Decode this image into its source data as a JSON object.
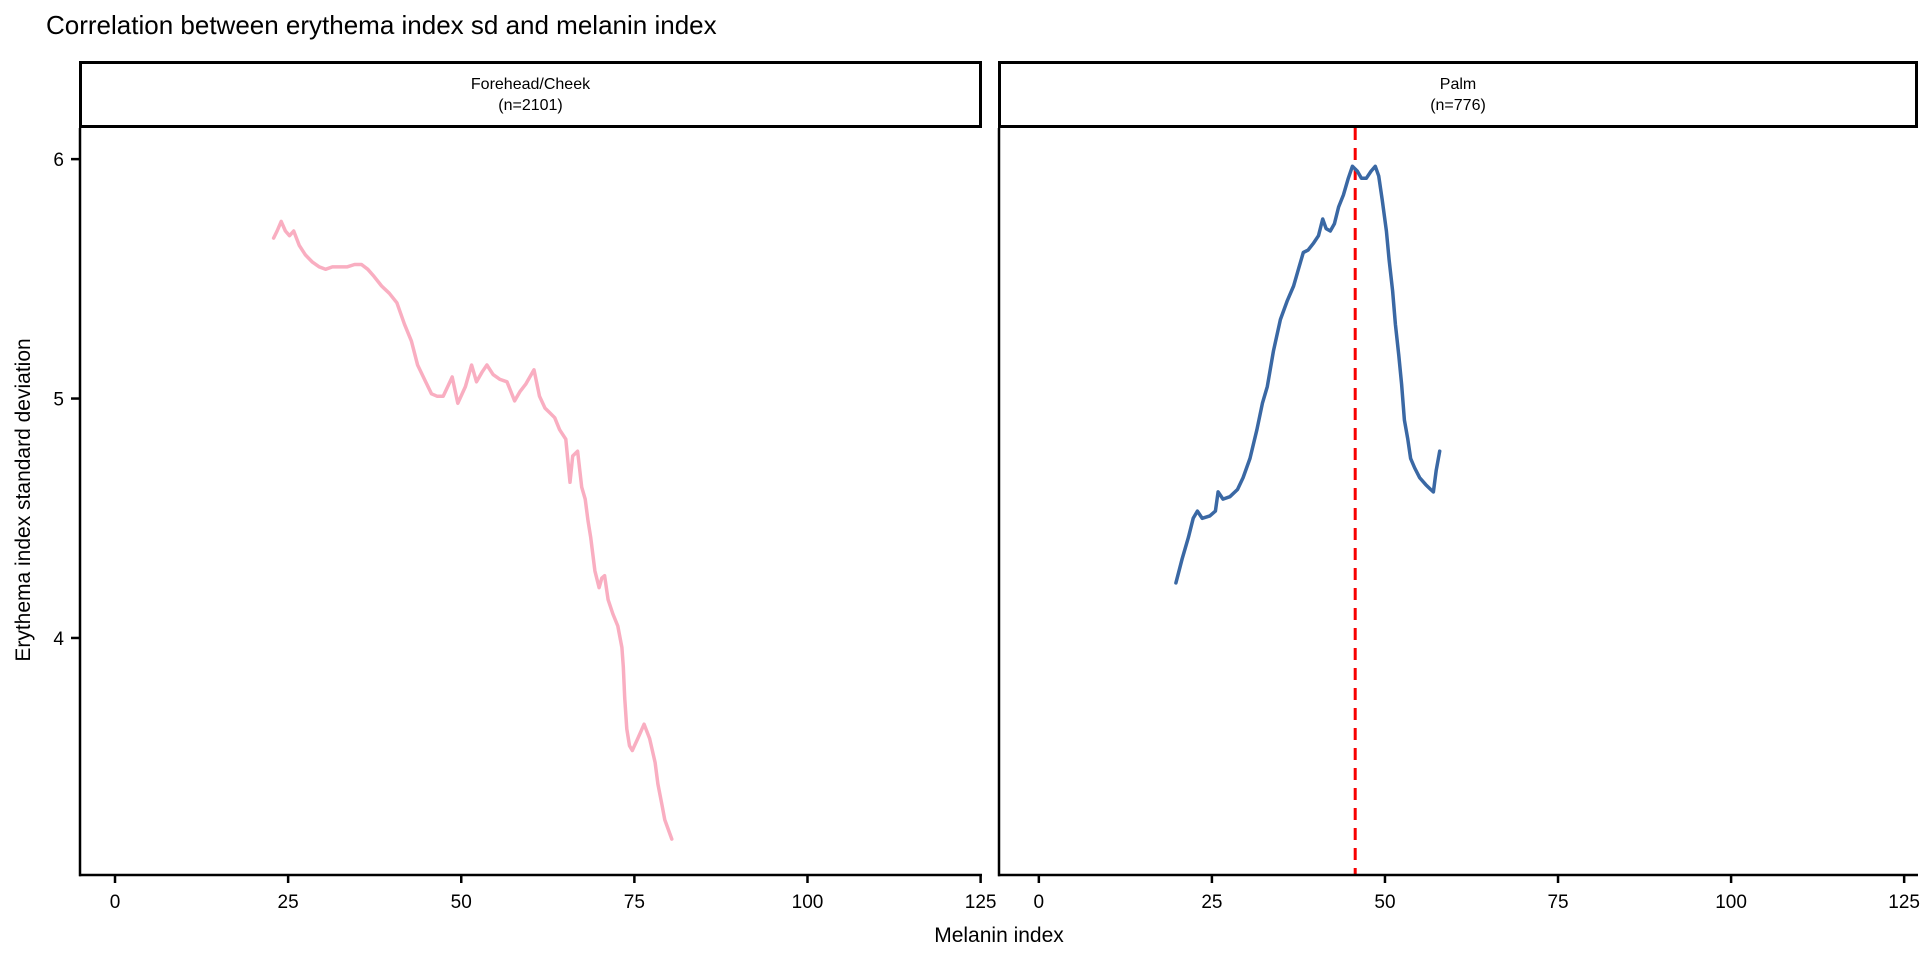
{
  "chart_data": {
    "type": "line",
    "title": "Correlation between erythema index sd and melanin index",
    "xlabel": "Melanin index",
    "ylabel": "Erythema index standard deviation",
    "x_ticks": [
      0,
      25,
      50,
      75,
      100,
      125
    ],
    "y_ticks": [
      4,
      5,
      6
    ],
    "ylim": [
      3.01,
      6.13
    ],
    "grid": "off",
    "legend": "none",
    "panels": [
      {
        "strip_line1": "Forehead/Cheek",
        "strip_line2": "(n=2101)",
        "series_name": "forehead-cheek",
        "color": "#F9AEC1",
        "xlim": [
          -5.2,
          125.2
        ],
        "points": [
          [
            22.9,
            5.67
          ],
          [
            23.4,
            5.7
          ],
          [
            24.0,
            5.74
          ],
          [
            24.6,
            5.7
          ],
          [
            25.2,
            5.68
          ],
          [
            25.8,
            5.7
          ],
          [
            26.6,
            5.64
          ],
          [
            27.5,
            5.6
          ],
          [
            28.5,
            5.57
          ],
          [
            29.5,
            5.55
          ],
          [
            30.4,
            5.54
          ],
          [
            31.4,
            5.55
          ],
          [
            32.4,
            5.55
          ],
          [
            33.5,
            5.55
          ],
          [
            34.6,
            5.56
          ],
          [
            35.6,
            5.56
          ],
          [
            36.5,
            5.54
          ],
          [
            37.4,
            5.51
          ],
          [
            38.5,
            5.47
          ],
          [
            39.6,
            5.44
          ],
          [
            40.7,
            5.4
          ],
          [
            41.8,
            5.31
          ],
          [
            42.8,
            5.24
          ],
          [
            43.7,
            5.14
          ],
          [
            44.7,
            5.08
          ],
          [
            45.7,
            5.02
          ],
          [
            46.5,
            5.01
          ],
          [
            47.4,
            5.01
          ],
          [
            48.7,
            5.09
          ],
          [
            49.5,
            4.98
          ],
          [
            50.6,
            5.05
          ],
          [
            51.5,
            5.14
          ],
          [
            52.2,
            5.07
          ],
          [
            53.0,
            5.11
          ],
          [
            53.7,
            5.14
          ],
          [
            54.6,
            5.1
          ],
          [
            55.6,
            5.08
          ],
          [
            56.6,
            5.07
          ],
          [
            57.7,
            4.99
          ],
          [
            58.5,
            5.03
          ],
          [
            59.3,
            5.06
          ],
          [
            60.5,
            5.12
          ],
          [
            61.3,
            5.01
          ],
          [
            62.1,
            4.96
          ],
          [
            62.8,
            4.94
          ],
          [
            63.5,
            4.92
          ],
          [
            64.2,
            4.87
          ],
          [
            65.1,
            4.83
          ],
          [
            65.7,
            4.65
          ],
          [
            66.1,
            4.76
          ],
          [
            66.8,
            4.78
          ],
          [
            67.4,
            4.63
          ],
          [
            67.9,
            4.58
          ],
          [
            68.3,
            4.49
          ],
          [
            68.7,
            4.42
          ],
          [
            69.3,
            4.28
          ],
          [
            69.9,
            4.21
          ],
          [
            70.3,
            4.25
          ],
          [
            70.7,
            4.26
          ],
          [
            71.2,
            4.16
          ],
          [
            71.9,
            4.1
          ],
          [
            72.6,
            4.05
          ],
          [
            73.2,
            3.96
          ],
          [
            73.4,
            3.88
          ],
          [
            73.6,
            3.75
          ],
          [
            73.9,
            3.62
          ],
          [
            74.3,
            3.55
          ],
          [
            74.7,
            3.53
          ],
          [
            75.5,
            3.58
          ],
          [
            76.4,
            3.64
          ],
          [
            77.2,
            3.58
          ],
          [
            78.0,
            3.48
          ],
          [
            78.4,
            3.39
          ],
          [
            79.0,
            3.3
          ],
          [
            79.4,
            3.24
          ],
          [
            79.9,
            3.2
          ],
          [
            80.4,
            3.16
          ]
        ]
      },
      {
        "strip_line1": "Palm",
        "strip_line2": "(n=776)",
        "series_name": "palm",
        "color": "#3A68A4",
        "xlim": [
          -5.9,
          127.0
        ],
        "vline": {
          "x": 45.7,
          "color": "#F80000",
          "style": "dashed"
        },
        "points": [
          [
            19.8,
            4.23
          ],
          [
            20.7,
            4.33
          ],
          [
            21.6,
            4.42
          ],
          [
            22.3,
            4.5
          ],
          [
            22.9,
            4.53
          ],
          [
            23.6,
            4.5
          ],
          [
            24.7,
            4.51
          ],
          [
            25.5,
            4.53
          ],
          [
            25.9,
            4.61
          ],
          [
            26.6,
            4.58
          ],
          [
            27.6,
            4.59
          ],
          [
            28.7,
            4.62
          ],
          [
            29.5,
            4.67
          ],
          [
            30.5,
            4.75
          ],
          [
            31.5,
            4.87
          ],
          [
            32.3,
            4.98
          ],
          [
            33.0,
            5.05
          ],
          [
            33.9,
            5.2
          ],
          [
            34.9,
            5.33
          ],
          [
            35.9,
            5.41
          ],
          [
            36.8,
            5.47
          ],
          [
            37.5,
            5.54
          ],
          [
            38.2,
            5.61
          ],
          [
            38.9,
            5.62
          ],
          [
            39.7,
            5.65
          ],
          [
            40.4,
            5.68
          ],
          [
            41.0,
            5.75
          ],
          [
            41.5,
            5.71
          ],
          [
            42.1,
            5.7
          ],
          [
            42.7,
            5.73
          ],
          [
            43.3,
            5.8
          ],
          [
            44.0,
            5.85
          ],
          [
            44.7,
            5.92
          ],
          [
            45.3,
            5.97
          ],
          [
            46.0,
            5.95
          ],
          [
            46.6,
            5.92
          ],
          [
            47.3,
            5.92
          ],
          [
            48.0,
            5.95
          ],
          [
            48.6,
            5.97
          ],
          [
            49.1,
            5.93
          ],
          [
            49.6,
            5.83
          ],
          [
            50.2,
            5.7
          ],
          [
            50.6,
            5.58
          ],
          [
            51.1,
            5.45
          ],
          [
            51.5,
            5.31
          ],
          [
            52.0,
            5.18
          ],
          [
            52.4,
            5.06
          ],
          [
            52.8,
            4.91
          ],
          [
            53.3,
            4.83
          ],
          [
            53.7,
            4.75
          ],
          [
            54.3,
            4.71
          ],
          [
            55.0,
            4.67
          ],
          [
            55.9,
            4.64
          ],
          [
            56.6,
            4.62
          ],
          [
            57.0,
            4.61
          ],
          [
            57.4,
            4.7
          ],
          [
            57.9,
            4.78
          ]
        ]
      }
    ]
  }
}
